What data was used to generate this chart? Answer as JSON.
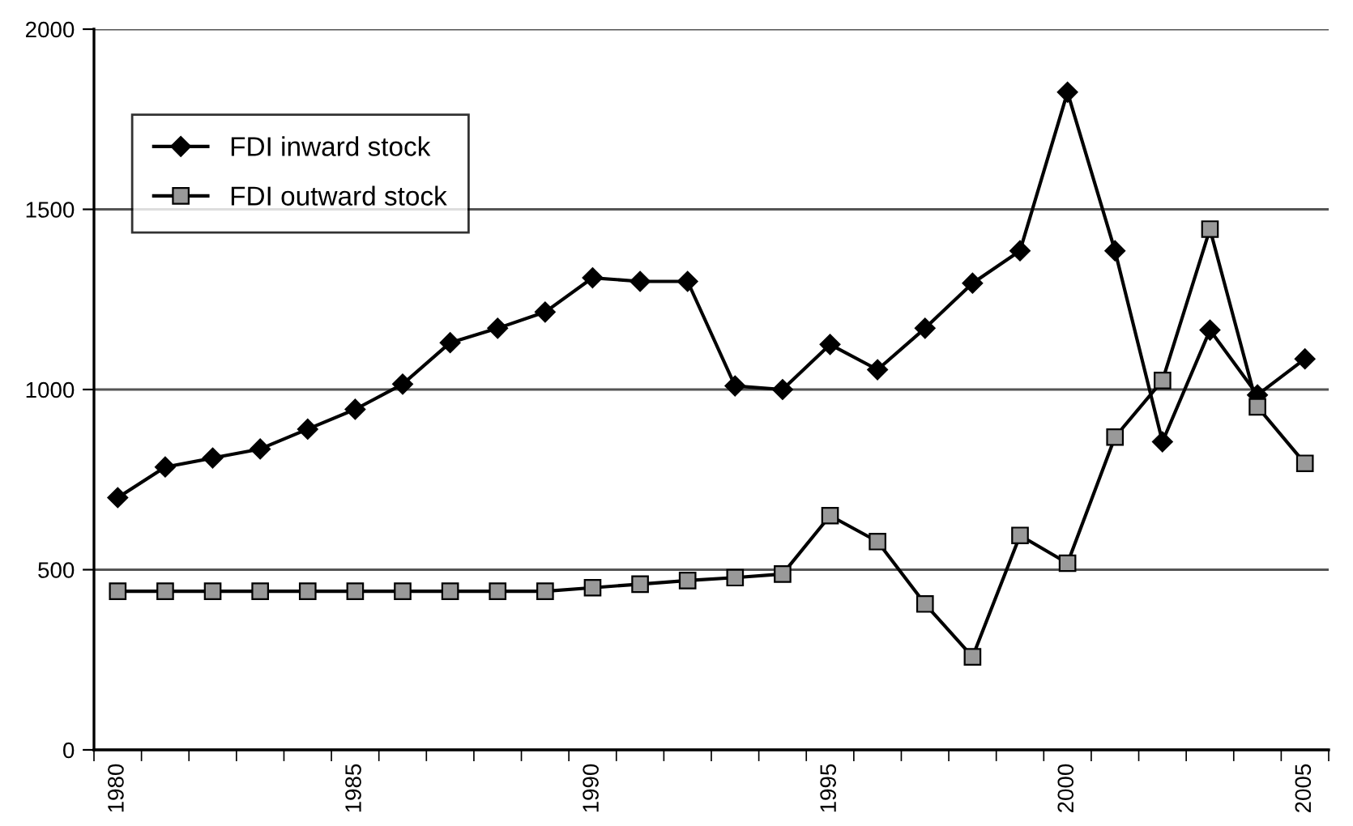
{
  "chart_data": {
    "type": "line",
    "categories": [
      "1980",
      null,
      null,
      null,
      null,
      "1985",
      null,
      null,
      null,
      null,
      "1990",
      null,
      null,
      null,
      null,
      "1995",
      null,
      null,
      null,
      null,
      "2000",
      null,
      null,
      null,
      null,
      "2005"
    ],
    "series": [
      {
        "name": "FDI inward stock",
        "color": "#000000",
        "marker": "diamond",
        "values": [
          700,
          785,
          810,
          835,
          890,
          945,
          1015,
          1130,
          1170,
          1215,
          1310,
          1300,
          1300,
          1010,
          1000,
          1125,
          1055,
          1170,
          1295,
          1385,
          1825,
          1385,
          855,
          1165,
          985,
          1085
        ]
      },
      {
        "name": "FDI outward stock",
        "color": "#999999",
        "marker": "square",
        "values": [
          440,
          440,
          440,
          440,
          440,
          440,
          440,
          440,
          440,
          440,
          450,
          460,
          470,
          478,
          488,
          650,
          578,
          405,
          258,
          595,
          518,
          868,
          1025,
          1445,
          952,
          795
        ]
      }
    ],
    "ylim": [
      0,
      2000
    ],
    "yticks": [
      0,
      500,
      1000,
      1500,
      2000
    ],
    "grid": "y",
    "legend": "top left",
    "line_style": "solid"
  }
}
